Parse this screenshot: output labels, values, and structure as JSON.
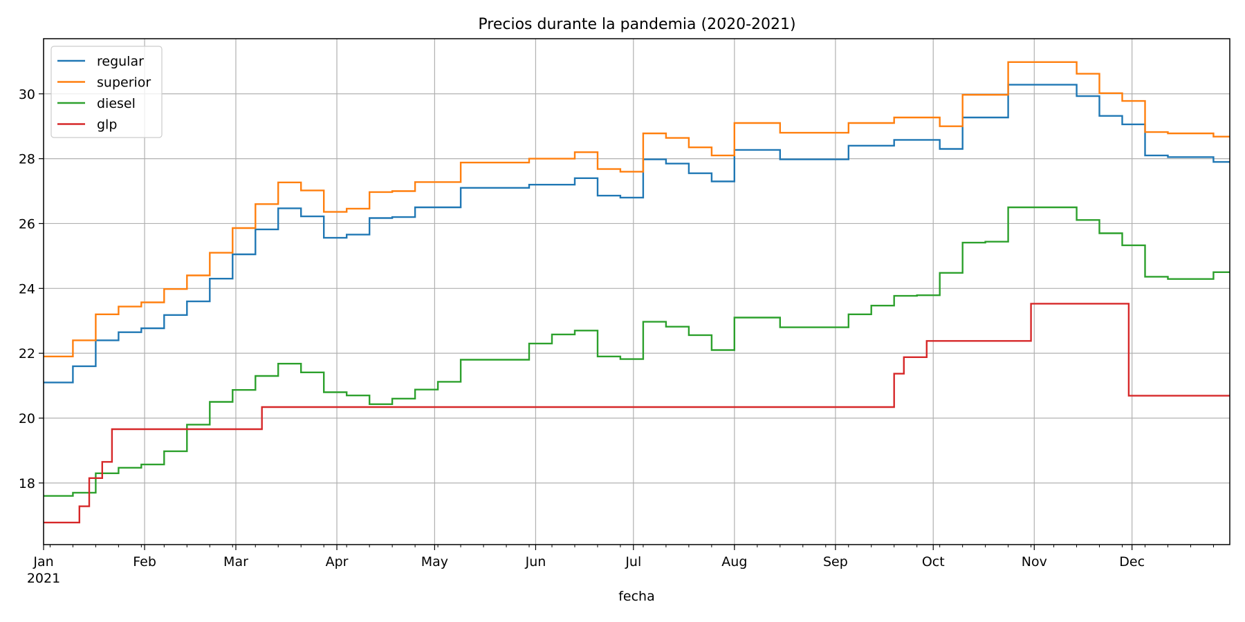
{
  "chart_data": {
    "type": "line",
    "title": "Precios durante la pandemia (2020-2021)",
    "xlabel": "fecha",
    "ylabel": "",
    "year_label": "2021",
    "x_domain": [
      "2021-01-01",
      "2021-12-31"
    ],
    "ylim": [
      16.1,
      31.7
    ],
    "y_ticks": [
      18,
      20,
      22,
      24,
      26,
      28,
      30
    ],
    "x_ticks": [
      {
        "date": "2021-01-01",
        "label": "Jan"
      },
      {
        "date": "2021-02-01",
        "label": "Feb"
      },
      {
        "date": "2021-03-01",
        "label": "Mar"
      },
      {
        "date": "2021-04-01",
        "label": "Apr"
      },
      {
        "date": "2021-05-01",
        "label": "May"
      },
      {
        "date": "2021-06-01",
        "label": "Jun"
      },
      {
        "date": "2021-07-01",
        "label": "Jul"
      },
      {
        "date": "2021-08-01",
        "label": "Aug"
      },
      {
        "date": "2021-09-01",
        "label": "Sep"
      },
      {
        "date": "2021-10-01",
        "label": "Oct"
      },
      {
        "date": "2021-11-01",
        "label": "Nov"
      },
      {
        "date": "2021-12-01",
        "label": "Dec"
      }
    ],
    "grid": true,
    "legend_position": "top-left",
    "series": [
      {
        "name": "regular",
        "color": "#1f77b4",
        "points": [
          [
            "2021-01-01",
            21.1
          ],
          [
            "2021-01-10",
            21.6
          ],
          [
            "2021-01-17",
            22.4
          ],
          [
            "2021-01-24",
            22.65
          ],
          [
            "2021-01-31",
            22.77
          ],
          [
            "2021-02-07",
            23.18
          ],
          [
            "2021-02-14",
            23.6
          ],
          [
            "2021-02-21",
            24.3
          ],
          [
            "2021-02-28",
            25.05
          ],
          [
            "2021-03-07",
            25.82
          ],
          [
            "2021-03-14",
            26.47
          ],
          [
            "2021-03-21",
            26.22
          ],
          [
            "2021-03-28",
            25.56
          ],
          [
            "2021-04-04",
            25.66
          ],
          [
            "2021-04-11",
            26.17
          ],
          [
            "2021-04-18",
            26.2
          ],
          [
            "2021-04-25",
            26.5
          ],
          [
            "2021-05-09",
            27.1
          ],
          [
            "2021-05-30",
            27.2
          ],
          [
            "2021-06-13",
            27.4
          ],
          [
            "2021-06-20",
            26.86
          ],
          [
            "2021-06-27",
            26.8
          ],
          [
            "2021-07-04",
            27.98
          ],
          [
            "2021-07-11",
            27.85
          ],
          [
            "2021-07-18",
            27.55
          ],
          [
            "2021-07-25",
            27.3
          ],
          [
            "2021-08-01",
            28.27
          ],
          [
            "2021-08-15",
            27.98
          ],
          [
            "2021-09-05",
            28.4
          ],
          [
            "2021-09-19",
            28.58
          ],
          [
            "2021-10-03",
            28.3
          ],
          [
            "2021-10-10",
            29.27
          ],
          [
            "2021-10-24",
            30.28
          ],
          [
            "2021-11-14",
            29.93
          ],
          [
            "2021-11-21",
            29.32
          ],
          [
            "2021-11-28",
            29.06
          ],
          [
            "2021-12-05",
            28.1
          ],
          [
            "2021-12-12",
            28.05
          ],
          [
            "2021-12-26",
            27.9
          ],
          [
            "2021-12-31",
            27.9
          ]
        ]
      },
      {
        "name": "superior",
        "color": "#ff7f0e",
        "points": [
          [
            "2021-01-01",
            21.9
          ],
          [
            "2021-01-10",
            22.4
          ],
          [
            "2021-01-17",
            23.2
          ],
          [
            "2021-01-24",
            23.44
          ],
          [
            "2021-01-31",
            23.57
          ],
          [
            "2021-02-07",
            23.98
          ],
          [
            "2021-02-14",
            24.4
          ],
          [
            "2021-02-21",
            25.1
          ],
          [
            "2021-02-28",
            25.86
          ],
          [
            "2021-03-07",
            26.6
          ],
          [
            "2021-03-14",
            27.27
          ],
          [
            "2021-03-21",
            27.02
          ],
          [
            "2021-03-28",
            26.36
          ],
          [
            "2021-04-04",
            26.46
          ],
          [
            "2021-04-11",
            26.97
          ],
          [
            "2021-04-18",
            27.0
          ],
          [
            "2021-04-25",
            27.28
          ],
          [
            "2021-05-09",
            27.88
          ],
          [
            "2021-05-30",
            28.0
          ],
          [
            "2021-06-13",
            28.2
          ],
          [
            "2021-06-20",
            27.68
          ],
          [
            "2021-06-27",
            27.6
          ],
          [
            "2021-07-04",
            28.78
          ],
          [
            "2021-07-11",
            28.64
          ],
          [
            "2021-07-18",
            28.35
          ],
          [
            "2021-07-25",
            28.1
          ],
          [
            "2021-08-01",
            29.1
          ],
          [
            "2021-08-15",
            28.8
          ],
          [
            "2021-09-05",
            29.1
          ],
          [
            "2021-09-19",
            29.27
          ],
          [
            "2021-10-03",
            29.0
          ],
          [
            "2021-10-10",
            29.97
          ],
          [
            "2021-10-24",
            30.98
          ],
          [
            "2021-11-14",
            30.62
          ],
          [
            "2021-11-21",
            30.02
          ],
          [
            "2021-11-28",
            29.78
          ],
          [
            "2021-12-05",
            28.82
          ],
          [
            "2021-12-12",
            28.78
          ],
          [
            "2021-12-26",
            28.68
          ],
          [
            "2021-12-31",
            28.68
          ]
        ]
      },
      {
        "name": "diesel",
        "color": "#2ca02c",
        "points": [
          [
            "2021-01-01",
            17.6
          ],
          [
            "2021-01-10",
            17.7
          ],
          [
            "2021-01-17",
            18.3
          ],
          [
            "2021-01-24",
            18.47
          ],
          [
            "2021-01-31",
            18.57
          ],
          [
            "2021-02-07",
            18.98
          ],
          [
            "2021-02-14",
            19.8
          ],
          [
            "2021-02-21",
            20.5
          ],
          [
            "2021-02-28",
            20.87
          ],
          [
            "2021-03-07",
            21.3
          ],
          [
            "2021-03-14",
            21.68
          ],
          [
            "2021-03-21",
            21.41
          ],
          [
            "2021-03-28",
            20.8
          ],
          [
            "2021-04-04",
            20.7
          ],
          [
            "2021-04-11",
            20.43
          ],
          [
            "2021-04-18",
            20.6
          ],
          [
            "2021-04-25",
            20.88
          ],
          [
            "2021-05-02",
            21.12
          ],
          [
            "2021-05-09",
            21.8
          ],
          [
            "2021-05-30",
            22.3
          ],
          [
            "2021-06-06",
            22.58
          ],
          [
            "2021-06-13",
            22.7
          ],
          [
            "2021-06-20",
            21.9
          ],
          [
            "2021-06-27",
            21.82
          ],
          [
            "2021-07-04",
            22.97
          ],
          [
            "2021-07-11",
            22.82
          ],
          [
            "2021-07-18",
            22.56
          ],
          [
            "2021-07-25",
            22.1
          ],
          [
            "2021-08-01",
            23.1
          ],
          [
            "2021-08-15",
            22.8
          ],
          [
            "2021-09-05",
            23.2
          ],
          [
            "2021-09-12",
            23.47
          ],
          [
            "2021-09-19",
            23.77
          ],
          [
            "2021-09-26",
            23.79
          ],
          [
            "2021-10-03",
            24.48
          ],
          [
            "2021-10-10",
            25.41
          ],
          [
            "2021-10-17",
            25.44
          ],
          [
            "2021-10-24",
            26.5
          ],
          [
            "2021-11-14",
            26.11
          ],
          [
            "2021-11-21",
            25.7
          ],
          [
            "2021-11-28",
            25.33
          ],
          [
            "2021-12-05",
            24.36
          ],
          [
            "2021-12-12",
            24.29
          ],
          [
            "2021-12-26",
            24.5
          ],
          [
            "2021-12-31",
            24.5
          ]
        ]
      },
      {
        "name": "glp",
        "color": "#d62728",
        "points": [
          [
            "2021-01-01",
            16.78
          ],
          [
            "2021-01-12",
            17.28
          ],
          [
            "2021-01-15",
            18.15
          ],
          [
            "2021-01-19",
            18.65
          ],
          [
            "2021-01-22",
            19.66
          ],
          [
            "2021-03-09",
            20.34
          ],
          [
            "2021-09-19",
            21.37
          ],
          [
            "2021-09-22",
            21.88
          ],
          [
            "2021-09-29",
            22.38
          ],
          [
            "2021-10-31",
            23.53
          ],
          [
            "2021-11-30",
            20.69
          ],
          [
            "2021-12-31",
            20.69
          ]
        ]
      }
    ]
  }
}
